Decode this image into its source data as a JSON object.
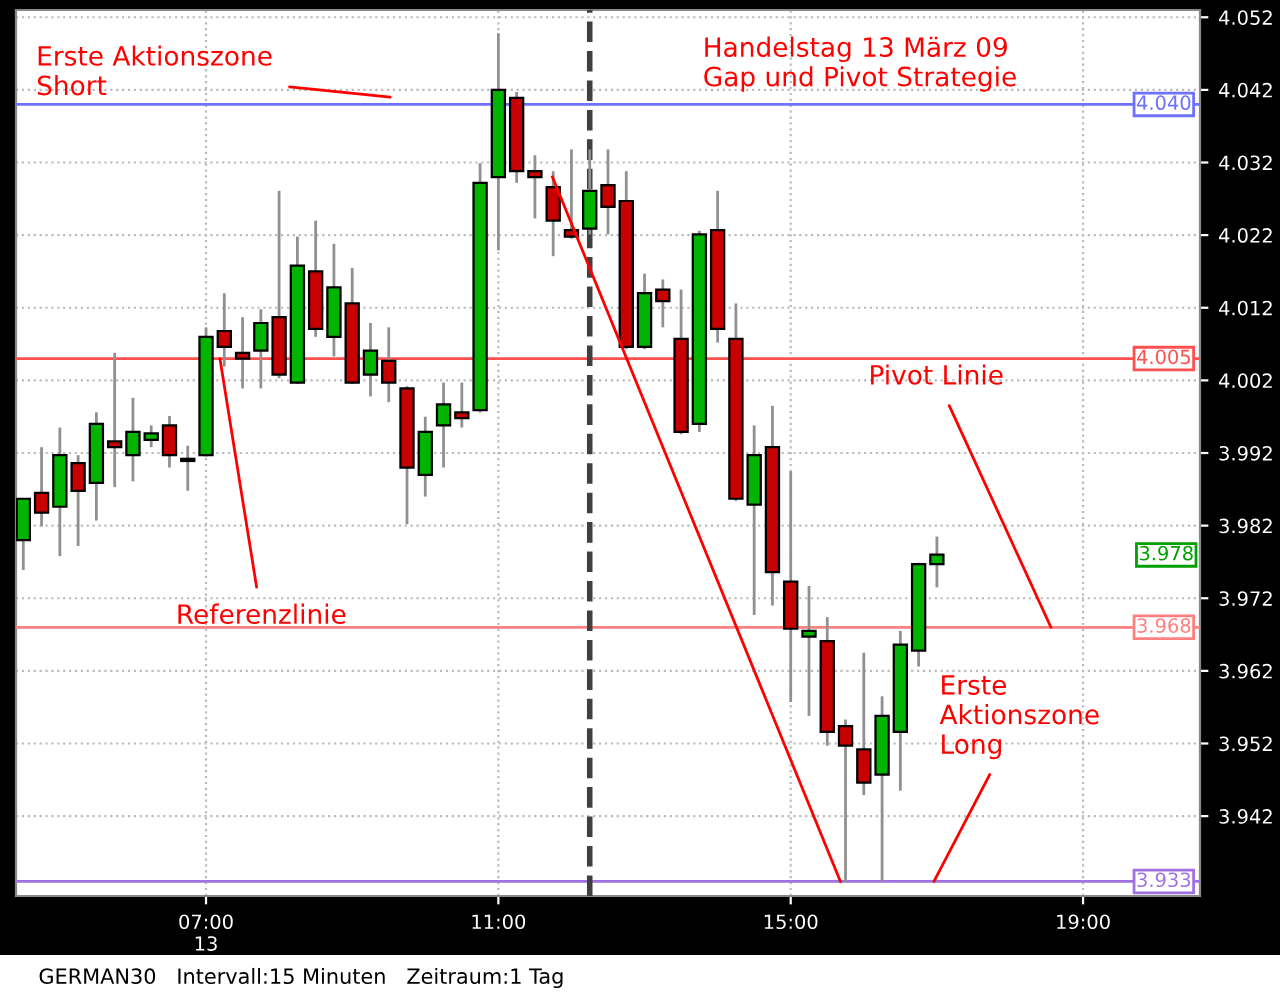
{
  "chart_data": {
    "type": "candlestick",
    "title": "Handelstag 13 März 09\nGap und Pivot Strategie",
    "x": [
      4.5,
      4.75,
      5.0,
      5.25,
      5.5,
      5.75,
      6.0,
      6.25,
      6.5,
      6.75,
      7.0,
      7.25,
      7.5,
      7.75,
      8.0,
      8.25,
      8.5,
      8.75,
      9.0,
      9.25,
      9.5,
      9.75,
      10.0,
      10.25,
      10.5,
      10.75,
      11.0,
      11.25,
      11.5,
      11.75,
      12.0,
      12.25,
      12.5,
      12.75,
      13.0,
      13.25,
      13.5,
      13.75,
      14.0,
      14.25,
      14.5,
      14.75,
      15.0,
      15.25,
      15.5,
      15.75,
      16.0,
      16.25,
      16.5,
      16.75,
      17.0
    ],
    "ohlc": [
      [
        3980,
        3985.7,
        3975.9,
        3985.7
      ],
      [
        3986.5,
        3992.8,
        3981.9,
        3983.8
      ],
      [
        3984.6,
        3995.5,
        3977.8,
        3991.7
      ],
      [
        3990.6,
        3991.7,
        3979.2,
        3986.8
      ],
      [
        3987.9,
        3997.6,
        3982.7,
        3996
      ],
      [
        3993.6,
        4005.8,
        3987.3,
        3992.8
      ],
      [
        3991.7,
        3999.6,
        3988.1,
        3994.9
      ],
      [
        3993.8,
        3995.8,
        3992.8,
        3994.7
      ],
      [
        3995.8,
        3997.1,
        3990,
        3991.7
      ],
      [
        3990.9,
        3993,
        3986.8,
        3991
      ],
      [
        3991.7,
        4009.3,
        3991.5,
        4008
      ],
      [
        4008.8,
        4014,
        4003.9,
        4006.6
      ],
      [
        4005.8,
        4010.7,
        4000.9,
        4005
      ],
      [
        4006.1,
        4011.8,
        4000.9,
        4009.9
      ],
      [
        4010.7,
        4028.1,
        4002.3,
        4002.8
      ],
      [
        4001.7,
        4021.8,
        4001.5,
        4017.8
      ],
      [
        4017,
        4024,
        4008,
        4009.1
      ],
      [
        4008,
        4020.8,
        4005.3,
        4014.8
      ],
      [
        4012.6,
        4017.5,
        4001.5,
        4001.7
      ],
      [
        4002.8,
        4009.9,
        3999.8,
        4006.1
      ],
      [
        4004.7,
        4009.3,
        3999,
        4001.7
      ],
      [
        4000.9,
        4001.2,
        3982.2,
        3990
      ],
      [
        3989,
        3997,
        3986,
        3994.9
      ],
      [
        3995.8,
        4001.7,
        3990,
        3998.7
      ],
      [
        3997.6,
        4001.7,
        3995.5,
        3996.8
      ],
      [
        3997.9,
        4031.9,
        3997.6,
        4029.2
      ],
      [
        4030,
        4049.8,
        4019.9,
        4042
      ],
      [
        4040.9,
        4041.7,
        4029.2,
        4030.8
      ],
      [
        4030.8,
        4033,
        4024.3,
        4030
      ],
      [
        4028.6,
        4030.8,
        4019.1,
        4024
      ],
      [
        4022.7,
        4033.8,
        4021.5,
        4021.8
      ],
      [
        4022.9,
        4033.8,
        4022.1,
        4028.1
      ],
      [
        4028.9,
        4033.8,
        4022.1,
        4025.9
      ],
      [
        4026.7,
        4030.8,
        4006.3,
        4006.6
      ],
      [
        4006.6,
        4016.7,
        4006.3,
        4014
      ],
      [
        4014.5,
        4015.9,
        4009.3,
        4012.9
      ],
      [
        4007.7,
        4014.5,
        3994.6,
        3994.9
      ],
      [
        3996,
        4022.6,
        3994.9,
        4022.1
      ],
      [
        4022.7,
        4028.1,
        4007.2,
        4009.1
      ],
      [
        4007.7,
        4012.6,
        3985.4,
        3985.7
      ],
      [
        3984.9,
        3995.8,
        3969.7,
        3991.7
      ],
      [
        3992.8,
        3998.5,
        3971,
        3975.6
      ],
      [
        3974.3,
        3989.5,
        3957.7,
        3967.8
      ],
      [
        3966.7,
        3973.7,
        3955.8,
        3967.5
      ],
      [
        3966.1,
        3969.4,
        3951.7,
        3953.6
      ],
      [
        3954.4,
        3955.3,
        3933,
        3951.7
      ],
      [
        3951.2,
        3964.5,
        3944.9,
        3946.6
      ],
      [
        3947.7,
        3958.5,
        3933,
        3955.8
      ],
      [
        3953.6,
        3967.5,
        3945.5,
        3965.6
      ],
      [
        3964.8,
        3976.9,
        3962.6,
        3976.7
      ],
      [
        3976.7,
        3980.5,
        3973.5,
        3978
      ]
    ],
    "colors": [
      "#00b400",
      "#c80000",
      "#00b400",
      "#c80000",
      "#00b400",
      "#c80000",
      "#00b400",
      "#00b400",
      "#c80000",
      "#c80000",
      "#00b400",
      "#c80000",
      "#c80000",
      "#00b400",
      "#c80000",
      "#00b400",
      "#c80000",
      "#00b400",
      "#c80000",
      "#00b400",
      "#c80000",
      "#c80000",
      "#00b400",
      "#00b400",
      "#c80000",
      "#00b400",
      "#00b400",
      "#c80000",
      "#c80000",
      "#c80000",
      "#c80000",
      "#00b400",
      "#c80000",
      "#c80000",
      "#00b400",
      "#c80000",
      "#c80000",
      "#00b400",
      "#c80000",
      "#c80000",
      "#00b400",
      "#c80000",
      "#c80000",
      "#00b400",
      "#c80000",
      "#c80000",
      "#c80000",
      "#00b400",
      "#00b400",
      "#00b400",
      "#00b400"
    ],
    "series": [
      {
        "type": "line",
        "color": "#ff0000",
        "x": [
          11.74,
          15.68
        ],
        "values": [
          4030,
          3933
        ]
      }
    ],
    "xlim": [
      4.4,
      20.6
    ],
    "xticks": [
      {
        "value": 7,
        "label": "07:00\n13"
      },
      {
        "value": 11,
        "label": "11:00"
      },
      {
        "value": 15,
        "label": "15:00"
      },
      {
        "value": 19,
        "label": "19:00"
      }
    ],
    "ylim": [
      3931,
      4053
    ],
    "yticks": [
      {
        "value": 3942,
        "label": "3.942"
      },
      {
        "value": 3952,
        "label": "3.952"
      },
      {
        "value": 3962,
        "label": "3.962"
      },
      {
        "value": 3972,
        "label": "3.972"
      },
      {
        "value": 3982,
        "label": "3.982"
      },
      {
        "value": 3992,
        "label": "3.992"
      },
      {
        "value": 4002,
        "label": "4.002"
      },
      {
        "value": 4012,
        "label": "4.012"
      },
      {
        "value": 4022,
        "label": "4.022"
      },
      {
        "value": 4032,
        "label": "4.032"
      },
      {
        "value": 4042,
        "label": "4.042"
      },
      {
        "value": 4052,
        "label": "4.052"
      }
    ],
    "grid": true,
    "ref_lines": [
      {
        "axis": "y",
        "value": 4040,
        "label": "4.040",
        "color": "#7070ff"
      },
      {
        "axis": "y",
        "value": 4005,
        "label": "4.005",
        "color": "#ff5050"
      },
      {
        "axis": "y",
        "value": 3968,
        "label": "3.968",
        "color": "#ff8080"
      },
      {
        "axis": "y",
        "value": 3933,
        "label": "3.933",
        "color": "#a070e0"
      },
      {
        "axis": "x",
        "value": 12.25,
        "color": "#404040",
        "line_style": "dashed"
      }
    ],
    "annotations": [
      {
        "text": "Erste Aktionszone\nShort",
        "x": 9.52,
        "y": 4041
      },
      {
        "text": "Referenzlinie",
        "x": 7.19,
        "y": 4005
      },
      {
        "text": "Pivot Linie",
        "x": 18.56,
        "y": 3968
      },
      {
        "text": "Erste\nAktionszone\nLong",
        "x": 16.96,
        "y": 3933
      },
      "3.978",
      "GERMAN30   Intervall:15 Minuten   Zeitraum:1 Tag"
    ]
  }
}
